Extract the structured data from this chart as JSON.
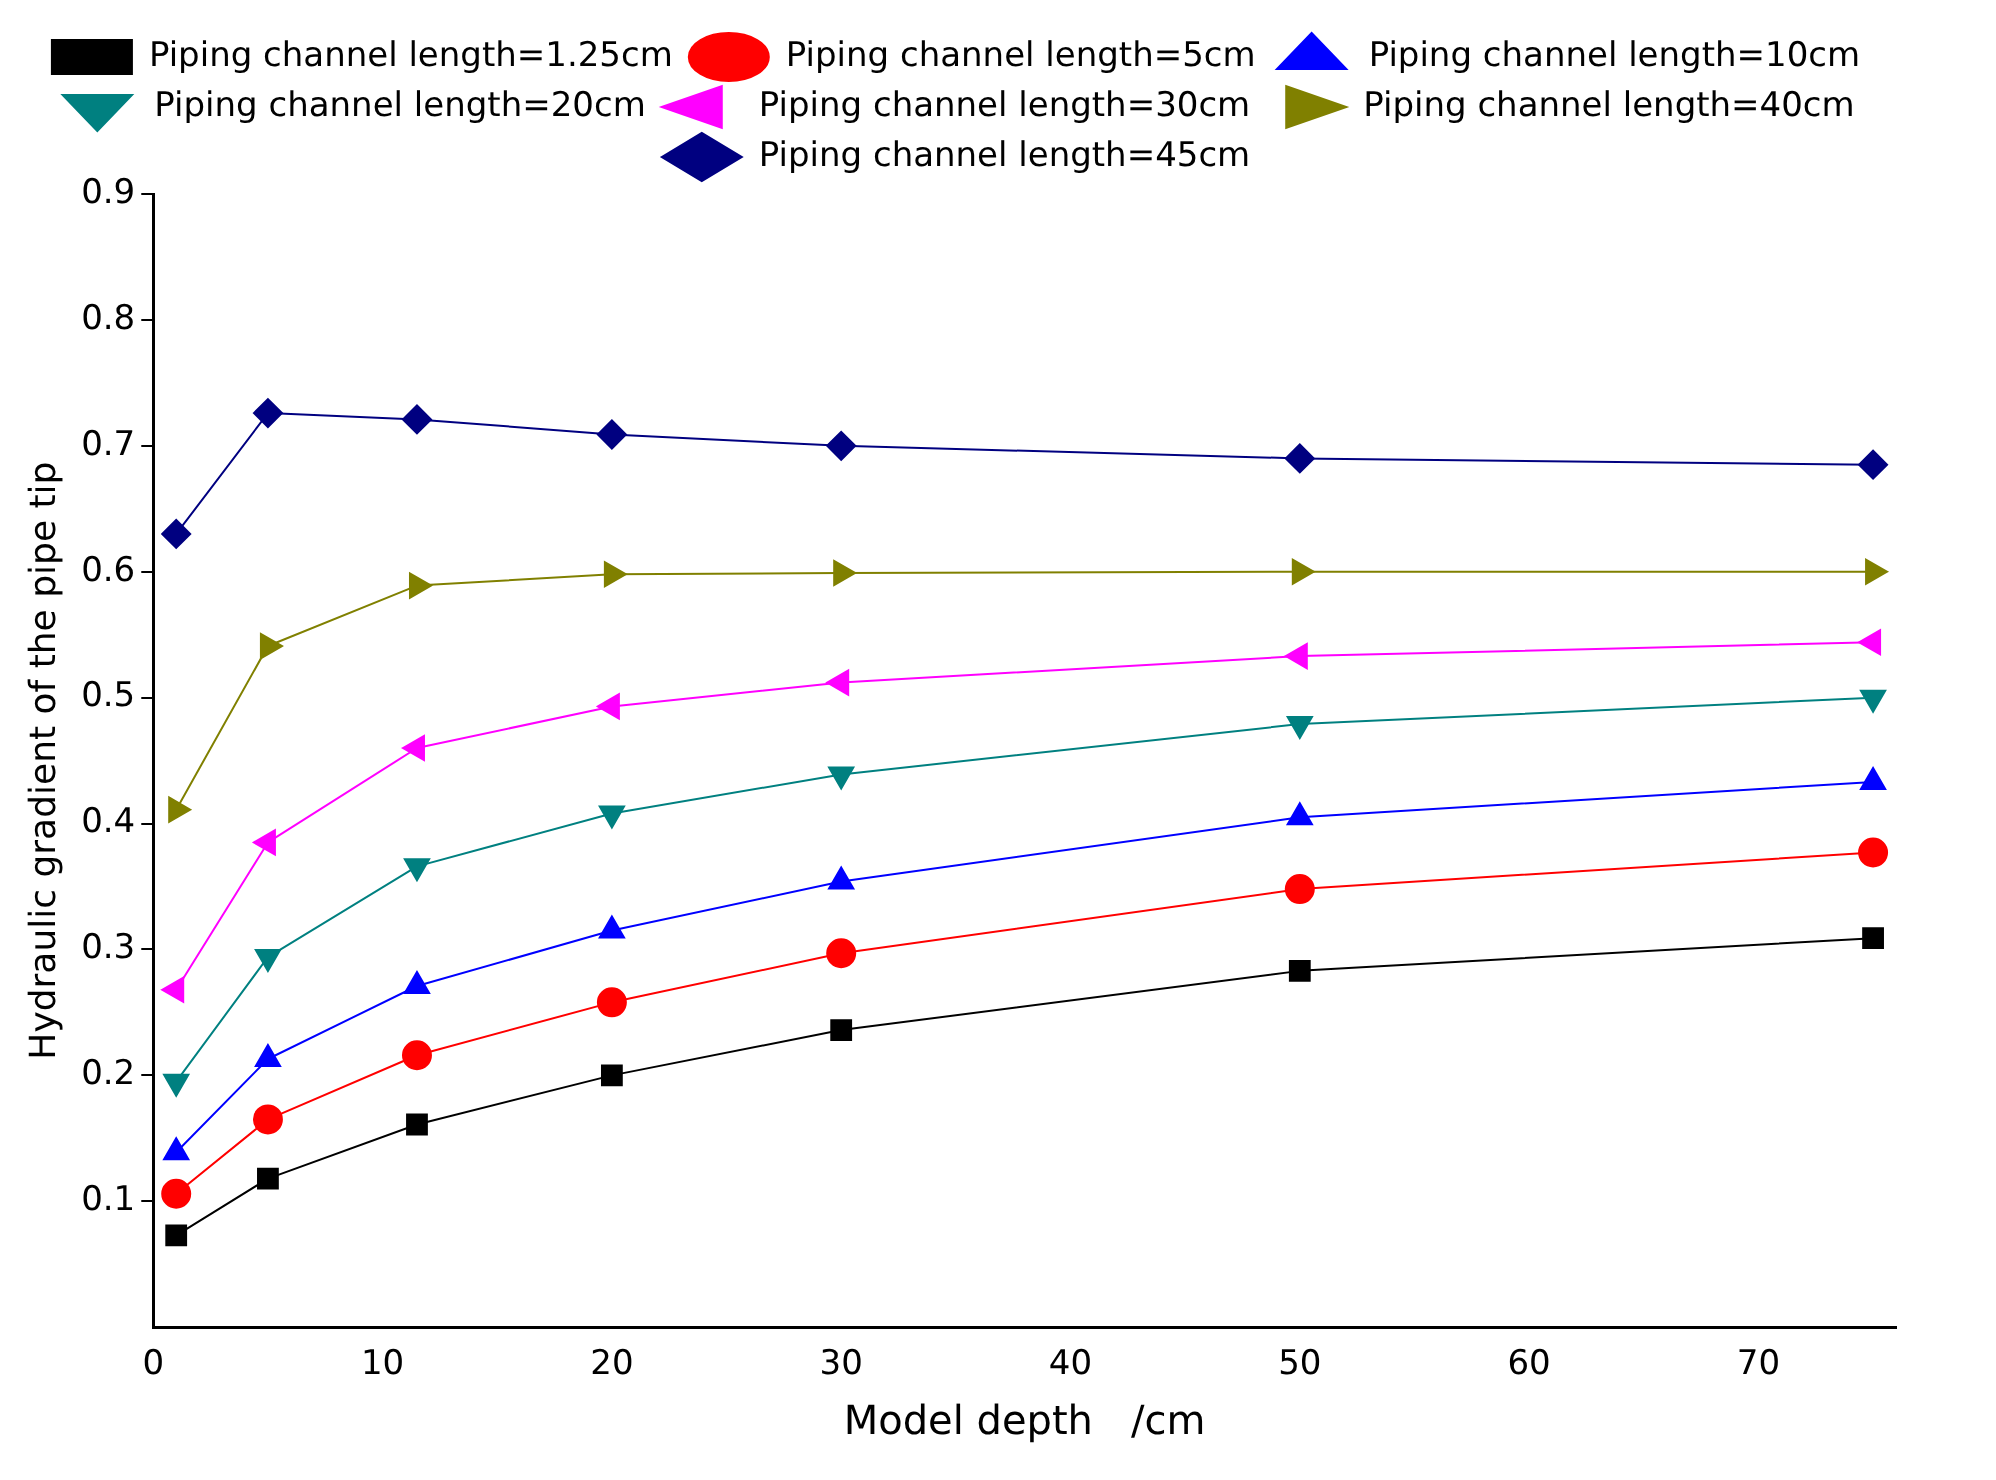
{
  "chart_data": {
    "type": "line",
    "xlabel": "Model depth   /cm",
    "ylabel": "Hydraulic gradient of the pipe tip",
    "x": [
      1,
      5,
      11.5,
      20,
      30,
      50,
      75
    ],
    "xlim": [
      0,
      76
    ],
    "xticks": [
      0,
      10,
      20,
      30,
      40,
      50,
      60,
      70
    ],
    "ylim": [
      0,
      0.9
    ],
    "yticks": [
      0.1,
      0.2,
      0.3,
      0.4,
      0.5,
      0.6,
      0.7,
      0.8,
      0.9
    ],
    "grid": false,
    "legend": "top",
    "line_style": "solid",
    "series": [
      {
        "name": "Piping channel length=1.25cm",
        "color": "#000000",
        "marker": "square",
        "values": [
          0.073,
          0.118,
          0.161,
          0.2,
          0.236,
          0.283,
          0.309
        ]
      },
      {
        "name": "Piping channel length=5cm",
        "color": "#ff0000",
        "marker": "circle",
        "values": [
          0.106,
          0.165,
          0.216,
          0.258,
          0.297,
          0.348,
          0.377
        ]
      },
      {
        "name": "Piping channel length=10cm",
        "color": "#0000ff",
        "marker": "triangle",
        "values": [
          0.139,
          0.213,
          0.271,
          0.315,
          0.354,
          0.405,
          0.433
        ]
      },
      {
        "name": "Piping channel length=20cm",
        "color": "#008080",
        "marker": "triangle-down",
        "values": [
          0.195,
          0.294,
          0.366,
          0.408,
          0.439,
          0.479,
          0.5
        ]
      },
      {
        "name": "Piping channel length=30cm",
        "color": "#ff00ff",
        "marker": "triangle-left",
        "values": [
          0.268,
          0.385,
          0.46,
          0.493,
          0.512,
          0.533,
          0.544
        ]
      },
      {
        "name": "Piping channel length=40cm",
        "color": "#808000",
        "marker": "triangle-right",
        "values": [
          0.411,
          0.541,
          0.589,
          0.598,
          0.599,
          0.6,
          0.6
        ]
      },
      {
        "name": "Piping channel length=45cm",
        "color": "#000080",
        "marker": "diamond",
        "values": [
          0.63,
          0.726,
          0.721,
          0.709,
          0.7,
          0.69,
          0.685
        ]
      }
    ]
  }
}
